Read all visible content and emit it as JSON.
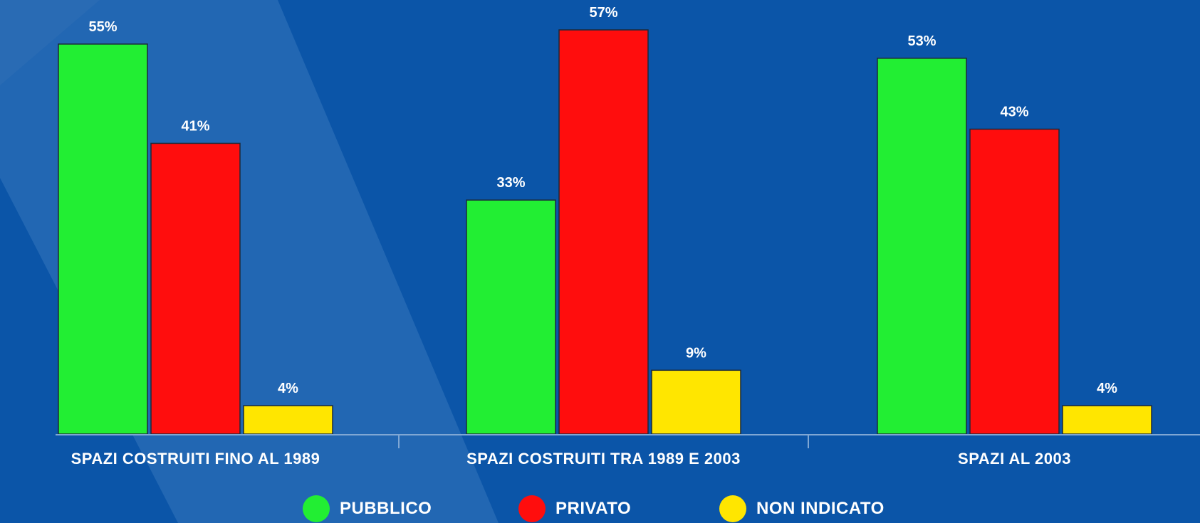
{
  "chart_data": {
    "type": "bar",
    "categories": [
      "SPAZI COSTRUITI FINO AL 1989",
      "SPAZI COSTRUITI TRA 1989 E 2003",
      "SPAZI AL 2003"
    ],
    "series": [
      {
        "name": "PUBBLICO",
        "values": [
          55,
          33,
          53
        ],
        "color": "#22ee33"
      },
      {
        "name": "PRIVATO",
        "values": [
          41,
          57,
          43
        ],
        "color": "#ff0d0d"
      },
      {
        "name": "NON INDICATO",
        "values": [
          4,
          9,
          4
        ],
        "color": "#ffe600"
      }
    ],
    "value_labels": [
      [
        "55%",
        "33%",
        "53%"
      ],
      [
        "41%",
        "57%",
        "43%"
      ],
      [
        "4%",
        "9%",
        "4%"
      ]
    ],
    "ylim": [
      0,
      57
    ],
    "legend_position": "bottom"
  }
}
